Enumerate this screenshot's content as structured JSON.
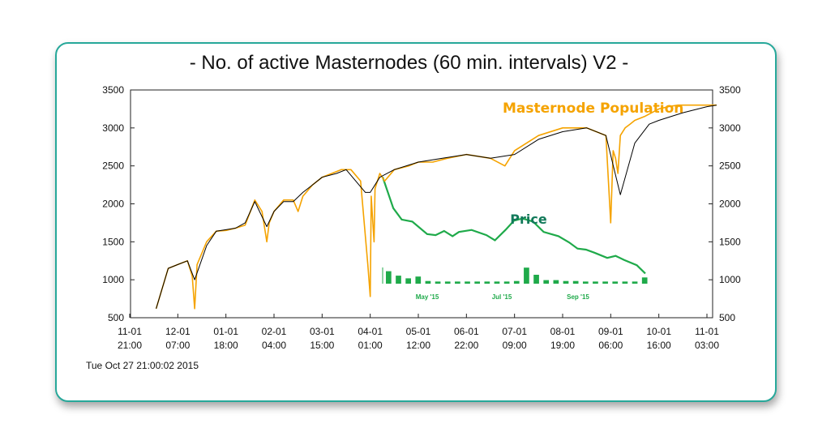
{
  "chart_data": {
    "type": "line",
    "title": "- No. of active Masternodes (60 min. intervals) V2 -",
    "timestamp": "Tue Oct 27 21:00:02 2015",
    "ylim": [
      500,
      3500
    ],
    "yticks": [
      500,
      1000,
      1500,
      2000,
      2500,
      3000,
      3500
    ],
    "x_ticks": [
      {
        "l1": "11-01",
        "l2": "21:00"
      },
      {
        "l1": "12-01",
        "l2": "07:00"
      },
      {
        "l1": "01-01",
        "l2": "18:00"
      },
      {
        "l1": "02-01",
        "l2": "04:00"
      },
      {
        "l1": "03-01",
        "l2": "15:00"
      },
      {
        "l1": "04-01",
        "l2": "01:00"
      },
      {
        "l1": "05-01",
        "l2": "12:00"
      },
      {
        "l1": "06-01",
        "l2": "22:00"
      },
      {
        "l1": "07-01",
        "l2": "09:00"
      },
      {
        "l1": "08-01",
        "l2": "19:00"
      },
      {
        "l1": "09-01",
        "l2": "06:00"
      },
      {
        "l1": "10-01",
        "l2": "16:00"
      },
      {
        "l1": "11-01",
        "l2": "03:00"
      }
    ],
    "colors": {
      "population": "#f5a300",
      "trend": "#000000",
      "price": "#1faa4a",
      "border": "#27a89a"
    },
    "series": [
      {
        "name": "Masternode Population",
        "x": [
          0.55,
          0.8,
          1.0,
          1.2,
          1.3,
          1.35,
          1.4,
          1.6,
          1.8,
          2.0,
          2.2,
          2.4,
          2.6,
          2.75,
          2.85,
          2.9,
          3.0,
          3.2,
          3.4,
          3.5,
          3.6,
          3.8,
          4.0,
          4.2,
          4.4,
          4.6,
          4.8,
          4.95,
          5.0,
          5.02,
          5.05,
          5.08,
          5.1,
          5.2,
          5.3,
          5.5,
          5.8,
          6.0,
          6.3,
          6.6,
          7.0,
          7.5,
          7.8,
          8.0,
          8.5,
          9.0,
          9.5,
          9.9,
          10.0,
          10.05,
          10.1,
          10.15,
          10.2,
          10.3,
          10.4,
          10.5,
          10.7,
          11.0,
          11.2,
          11.4,
          11.7,
          12.0,
          12.2
        ],
        "y": [
          620,
          1150,
          1200,
          1250,
          1050,
          620,
          1200,
          1500,
          1640,
          1650,
          1680,
          1720,
          2050,
          1900,
          1500,
          1750,
          1900,
          2050,
          2050,
          1900,
          2100,
          2250,
          2350,
          2400,
          2450,
          2450,
          2300,
          1200,
          780,
          2100,
          1800,
          1500,
          2200,
          2400,
          2300,
          2450,
          2500,
          2550,
          2550,
          2600,
          2650,
          2600,
          2500,
          2700,
          2900,
          3000,
          3000,
          2900,
          1750,
          2700,
          2600,
          2400,
          2900,
          3000,
          3050,
          3100,
          3150,
          3250,
          3280,
          3300,
          3300,
          3300,
          3300
        ]
      },
      {
        "name": "",
        "x": [
          0.55,
          0.8,
          1.0,
          1.2,
          1.35,
          1.6,
          1.8,
          2.2,
          2.4,
          2.6,
          2.85,
          3.0,
          3.2,
          3.4,
          3.6,
          3.8,
          4.0,
          4.3,
          4.5,
          4.9,
          5.0,
          5.2,
          5.5,
          6.0,
          6.5,
          7.0,
          7.5,
          8.0,
          8.5,
          9.0,
          9.5,
          9.9,
          10.2,
          10.5,
          10.8,
          11.0,
          11.5,
          12.0,
          12.2
        ],
        "y": [
          620,
          1150,
          1200,
          1250,
          1000,
          1450,
          1640,
          1680,
          1750,
          2030,
          1700,
          1900,
          2030,
          2030,
          2150,
          2250,
          2350,
          2400,
          2450,
          2150,
          2150,
          2350,
          2450,
          2550,
          2600,
          2650,
          2600,
          2650,
          2850,
          2950,
          3000,
          2900,
          2120,
          2800,
          3050,
          3100,
          3200,
          3280,
          3300
        ]
      }
    ],
    "inset": {
      "label": "Price",
      "series_label": "Masternode Population",
      "x_labels": [
        "May '15",
        "Jul '15",
        "Sep '15"
      ],
      "price": [
        [
          0,
          0.05
        ],
        [
          0.05,
          0.35
        ],
        [
          0.09,
          0.46
        ],
        [
          0.14,
          0.48
        ],
        [
          0.21,
          0.6
        ],
        [
          0.25,
          0.61
        ],
        [
          0.29,
          0.57
        ],
        [
          0.33,
          0.62
        ],
        [
          0.36,
          0.58
        ],
        [
          0.42,
          0.56
        ],
        [
          0.49,
          0.61
        ],
        [
          0.53,
          0.66
        ],
        [
          0.58,
          0.56
        ],
        [
          0.62,
          0.47
        ],
        [
          0.66,
          0.45
        ],
        [
          0.71,
          0.48
        ],
        [
          0.76,
          0.58
        ],
        [
          0.83,
          0.62
        ],
        [
          0.88,
          0.68
        ],
        [
          0.92,
          0.74
        ],
        [
          0.96,
          0.75
        ],
        [
          1.0,
          0.78
        ],
        [
          1.06,
          0.83
        ],
        [
          1.1,
          0.81
        ],
        [
          1.14,
          0.85
        ],
        [
          1.2,
          0.9
        ],
        [
          1.24,
          0.98
        ]
      ],
      "volume": [
        0.7,
        0.45,
        0.3,
        0.4,
        0.15,
        0.12,
        0.12,
        0.12,
        0.12,
        0.12,
        0.12,
        0.12,
        0.12,
        0.15,
        0.9,
        0.5,
        0.2,
        0.2,
        0.15,
        0.15,
        0.12,
        0.12,
        0.12,
        0.12,
        0.12,
        0.12,
        0.35
      ]
    }
  }
}
